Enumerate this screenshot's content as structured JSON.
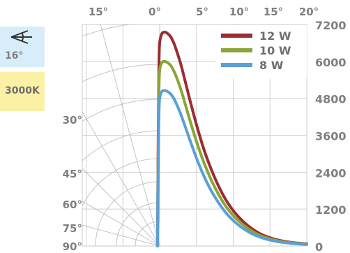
{
  "badges": {
    "beam_angle": "16°",
    "beam_icon": "beam-angle-icon",
    "color_temperature": "3000K",
    "beam_bg": "#d7eefa",
    "cct_bg": "#fbf1a6"
  },
  "chart_data": {
    "type": "line",
    "title": "",
    "xlabel": "",
    "ylabel": "",
    "ylim": [
      0,
      7200
    ],
    "xlim_deg": [
      -20,
      20
    ],
    "grid": true,
    "legend_position": "top-right",
    "y_ticks": [
      "0",
      "1200",
      "2400",
      "3600",
      "4800",
      "6000",
      "7200"
    ],
    "top_angle_ticks": [
      "15°",
      "0°",
      "5°",
      "10°",
      "15°",
      "20°"
    ],
    "left_angle_ticks": [
      "30°",
      "45°",
      "60°",
      "75°",
      "90°"
    ],
    "series": [
      {
        "name": "12 W",
        "color": "#9b2c30",
        "peak": 6950,
        "x": [
          -0.3,
          -0.2,
          -0.1,
          0,
          0.3,
          0.7,
          1,
          1.5,
          2,
          2.5,
          3,
          4,
          5,
          6,
          7,
          8,
          9,
          10,
          11,
          12,
          13,
          14,
          15,
          16,
          17,
          18,
          19,
          20
        ],
        "y": [
          0,
          3500,
          5800,
          6600,
          6900,
          6950,
          6920,
          6800,
          6550,
          6200,
          5800,
          4850,
          3950,
          3150,
          2500,
          1950,
          1500,
          1150,
          880,
          660,
          490,
          360,
          270,
          200,
          150,
          115,
          90,
          70
        ]
      },
      {
        "name": "10 W",
        "color": "#8aa536",
        "peak": 6000,
        "x": [
          -0.3,
          -0.2,
          -0.1,
          0,
          0.3,
          0.7,
          1,
          1.5,
          2,
          2.5,
          3,
          4,
          5,
          6,
          7,
          8,
          9,
          10,
          11,
          12,
          13,
          14,
          15,
          16,
          17,
          18,
          19,
          20
        ],
        "y": [
          0,
          3000,
          5000,
          5700,
          5960,
          6000,
          5970,
          5870,
          5650,
          5350,
          5000,
          4180,
          3400,
          2720,
          2150,
          1680,
          1290,
          990,
          760,
          570,
          420,
          310,
          235,
          175,
          130,
          100,
          80,
          60
        ]
      },
      {
        "name": "8 W",
        "color": "#5a9fd6",
        "peak": 5050,
        "x": [
          -0.3,
          -0.2,
          -0.1,
          0,
          0.3,
          0.7,
          1,
          1.5,
          2,
          2.5,
          3,
          4,
          5,
          6,
          7,
          8,
          9,
          10,
          11,
          12,
          13,
          14,
          15,
          16,
          17,
          18,
          19,
          20
        ],
        "y": [
          0,
          2500,
          4200,
          4800,
          5020,
          5050,
          5030,
          4940,
          4760,
          4500,
          4200,
          3520,
          2860,
          2280,
          1800,
          1410,
          1080,
          830,
          630,
          470,
          350,
          260,
          195,
          145,
          110,
          85,
          65,
          50
        ]
      }
    ]
  }
}
